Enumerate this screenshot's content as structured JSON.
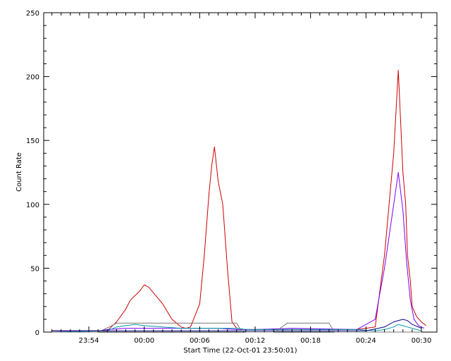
{
  "chart_data": {
    "type": "line",
    "xlabel": "Start Time (22-Oct-01 23:50:01)",
    "ylabel": "Count Rate",
    "ylim": [
      0,
      250
    ],
    "xlim_minutes": [
      0,
      40
    ],
    "x_ticks": [
      {
        "minute": 4,
        "label": "23:54"
      },
      {
        "minute": 10,
        "label": "00:00"
      },
      {
        "minute": 16,
        "label": "00:06"
      },
      {
        "minute": 22,
        "label": "00:12"
      },
      {
        "minute": 28,
        "label": "00:18"
      },
      {
        "minute": 34,
        "label": "00:24"
      },
      {
        "minute": 40,
        "label": "00:30"
      }
    ],
    "y_ticks": [
      0,
      50,
      100,
      150,
      200,
      250
    ],
    "grid": false,
    "series": [
      {
        "color": "#cc0000",
        "x": [
          0,
          6,
          7,
          8,
          8.5,
          9.5,
          10,
          10.5,
          12,
          13,
          14,
          14.5,
          15,
          16,
          16.5,
          17,
          17.3,
          17.6,
          18,
          18.5,
          19,
          19.5,
          20,
          21,
          22,
          25,
          28,
          30,
          33,
          34,
          35,
          36,
          37,
          37.5,
          38,
          38.3,
          38.5,
          38.8,
          39,
          39.5,
          40,
          40.5
        ],
        "y": [
          1,
          1,
          8,
          18,
          25,
          32,
          37,
          35,
          22,
          10,
          4,
          3,
          4,
          22,
          60,
          108,
          130,
          145,
          118,
          100,
          50,
          8,
          3,
          2,
          2,
          2,
          2,
          2,
          2,
          3,
          4,
          60,
          140,
          205,
          125,
          100,
          60,
          40,
          20,
          12,
          8,
          5
        ]
      },
      {
        "color": "#7a00ff",
        "x": [
          0,
          5,
          6,
          8,
          10,
          14,
          16,
          18,
          20,
          22,
          26,
          33,
          35,
          36,
          37,
          37.5,
          38,
          38.4,
          38.8,
          39.2,
          39.7,
          40.3
        ],
        "y": [
          1,
          1,
          2,
          3,
          3,
          3,
          3,
          3,
          2,
          2,
          3,
          2,
          10,
          50,
          100,
          125,
          95,
          55,
          25,
          10,
          5,
          3
        ]
      },
      {
        "color": "#0099aa",
        "x": [
          0,
          6,
          7,
          8,
          9,
          10,
          12,
          14,
          15,
          16,
          18,
          20,
          21,
          22,
          24,
          25,
          28,
          30,
          33,
          35,
          36,
          37,
          37.5,
          38,
          38.5,
          39,
          39.5,
          40
        ],
        "y": [
          0,
          1,
          4,
          5,
          6,
          5,
          4,
          3,
          3,
          3,
          3,
          3,
          2,
          2,
          2,
          2,
          2,
          2,
          2,
          1,
          2,
          4,
          6,
          5,
          4,
          3,
          2,
          1
        ]
      },
      {
        "color": "#000080",
        "x": [
          0,
          34,
          36,
          37,
          38,
          38.5,
          39,
          40
        ],
        "y": [
          1,
          1,
          4,
          8,
          10,
          9,
          6,
          3
        ]
      },
      {
        "color": "#777777",
        "x": [
          0,
          5,
          6.5,
          7,
          8,
          10,
          14,
          18,
          20,
          20.5,
          21,
          24,
          24.5,
          25.5,
          30,
          30.5,
          30.6,
          40
        ],
        "y": [
          0,
          0,
          5,
          7,
          7,
          7,
          7,
          7,
          7,
          1,
          0,
          0,
          2,
          7,
          7,
          1,
          0,
          0
        ]
      }
    ]
  }
}
